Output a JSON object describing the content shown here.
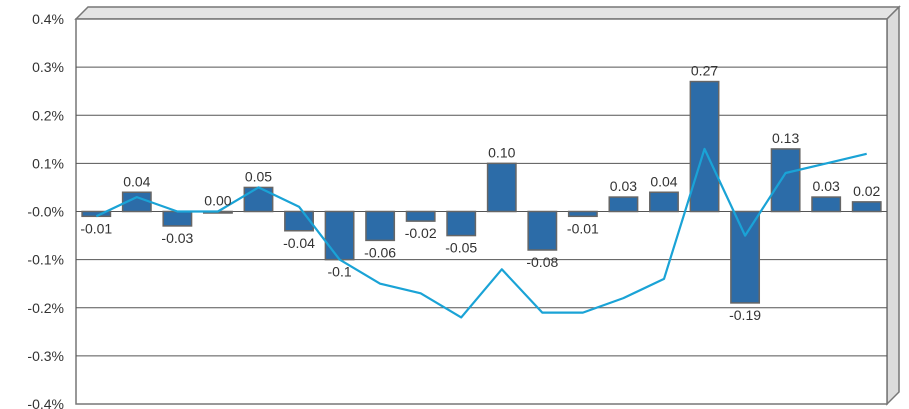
{
  "chart_data": {
    "type": "bar",
    "bar_color": "#2c6ca8",
    "bar_outline": "#666666",
    "line_color": "#1aa3d6",
    "grid": true,
    "ylim": [
      -0.4,
      0.4
    ],
    "yticks": [
      {
        "value": 0.4,
        "label": "0.4%"
      },
      {
        "value": 0.3,
        "label": "0.3%"
      },
      {
        "value": 0.2,
        "label": "0.2%"
      },
      {
        "value": 0.1,
        "label": "0.1%"
      },
      {
        "value": 0.0,
        "label": "-0.0%"
      },
      {
        "value": -0.1,
        "label": "-0.1%"
      },
      {
        "value": -0.2,
        "label": "-0.2%"
      },
      {
        "value": -0.3,
        "label": "-0.3%"
      },
      {
        "value": -0.4,
        "label": "-0.4%"
      }
    ],
    "bars": [
      {
        "value": -0.01,
        "label": "-0.01"
      },
      {
        "value": 0.04,
        "label": "0.04"
      },
      {
        "value": -0.03,
        "label": "-0.03"
      },
      {
        "value": 0.0,
        "label": "0.00"
      },
      {
        "value": 0.05,
        "label": "0.05"
      },
      {
        "value": -0.04,
        "label": "-0.04"
      },
      {
        "value": -0.1,
        "label": "-0.1"
      },
      {
        "value": -0.06,
        "label": "-0.06"
      },
      {
        "value": -0.02,
        "label": "-0.02"
      },
      {
        "value": -0.05,
        "label": "-0.05"
      },
      {
        "value": 0.1,
        "label": "0.10"
      },
      {
        "value": -0.08,
        "label": "-0.08"
      },
      {
        "value": -0.01,
        "label": "-0.01"
      },
      {
        "value": 0.03,
        "label": "0.03"
      },
      {
        "value": 0.04,
        "label": "0.04"
      },
      {
        "value": 0.27,
        "label": "0.27"
      },
      {
        "value": -0.19,
        "label": "-0.19"
      },
      {
        "value": 0.13,
        "label": "0.13"
      },
      {
        "value": 0.03,
        "label": "0.03"
      },
      {
        "value": 0.02,
        "label": "0.02"
      }
    ],
    "line": [
      -0.01,
      0.03,
      0.0,
      0.0,
      0.05,
      0.01,
      -0.1,
      -0.15,
      -0.17,
      -0.22,
      -0.12,
      -0.21,
      -0.21,
      -0.18,
      -0.14,
      0.13,
      -0.05,
      0.08,
      0.1,
      0.12
    ]
  }
}
